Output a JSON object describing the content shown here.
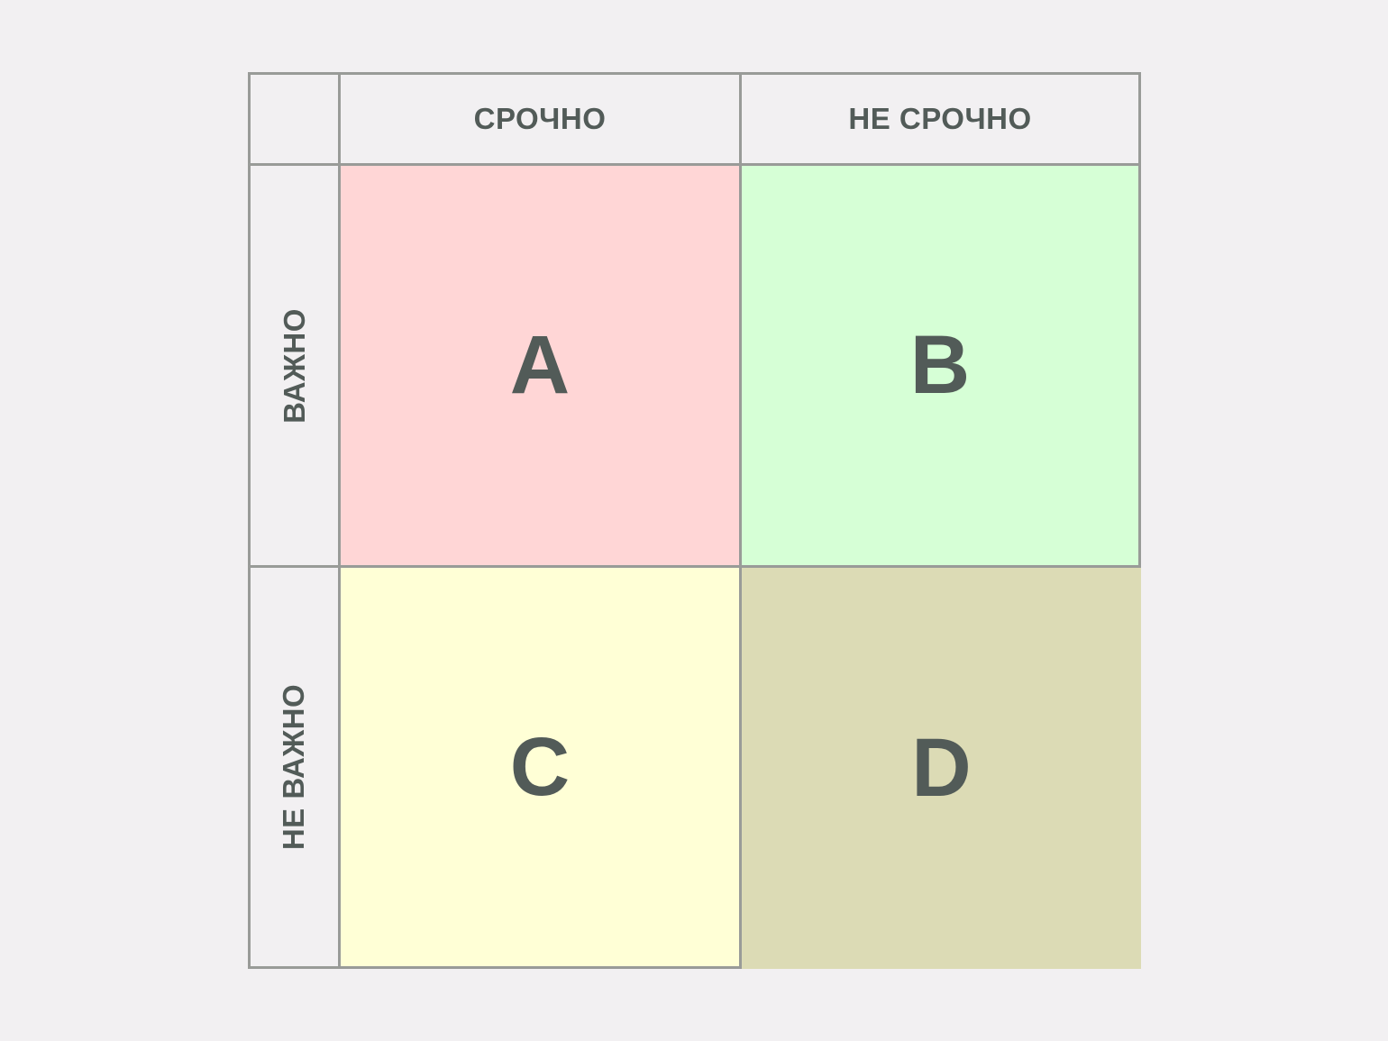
{
  "columns": [
    "СРОЧНО",
    "НЕ СРОЧНО"
  ],
  "rows": [
    "ВАЖНО",
    "НЕ ВАЖНО"
  ],
  "quadrants": [
    {
      "label": "A",
      "color": "#ffd6d6"
    },
    {
      "label": "B",
      "color": "#d6ffd6"
    },
    {
      "label": "C",
      "color": "#ffffd6"
    },
    {
      "label": "D",
      "color": "#dcdbb5"
    }
  ]
}
